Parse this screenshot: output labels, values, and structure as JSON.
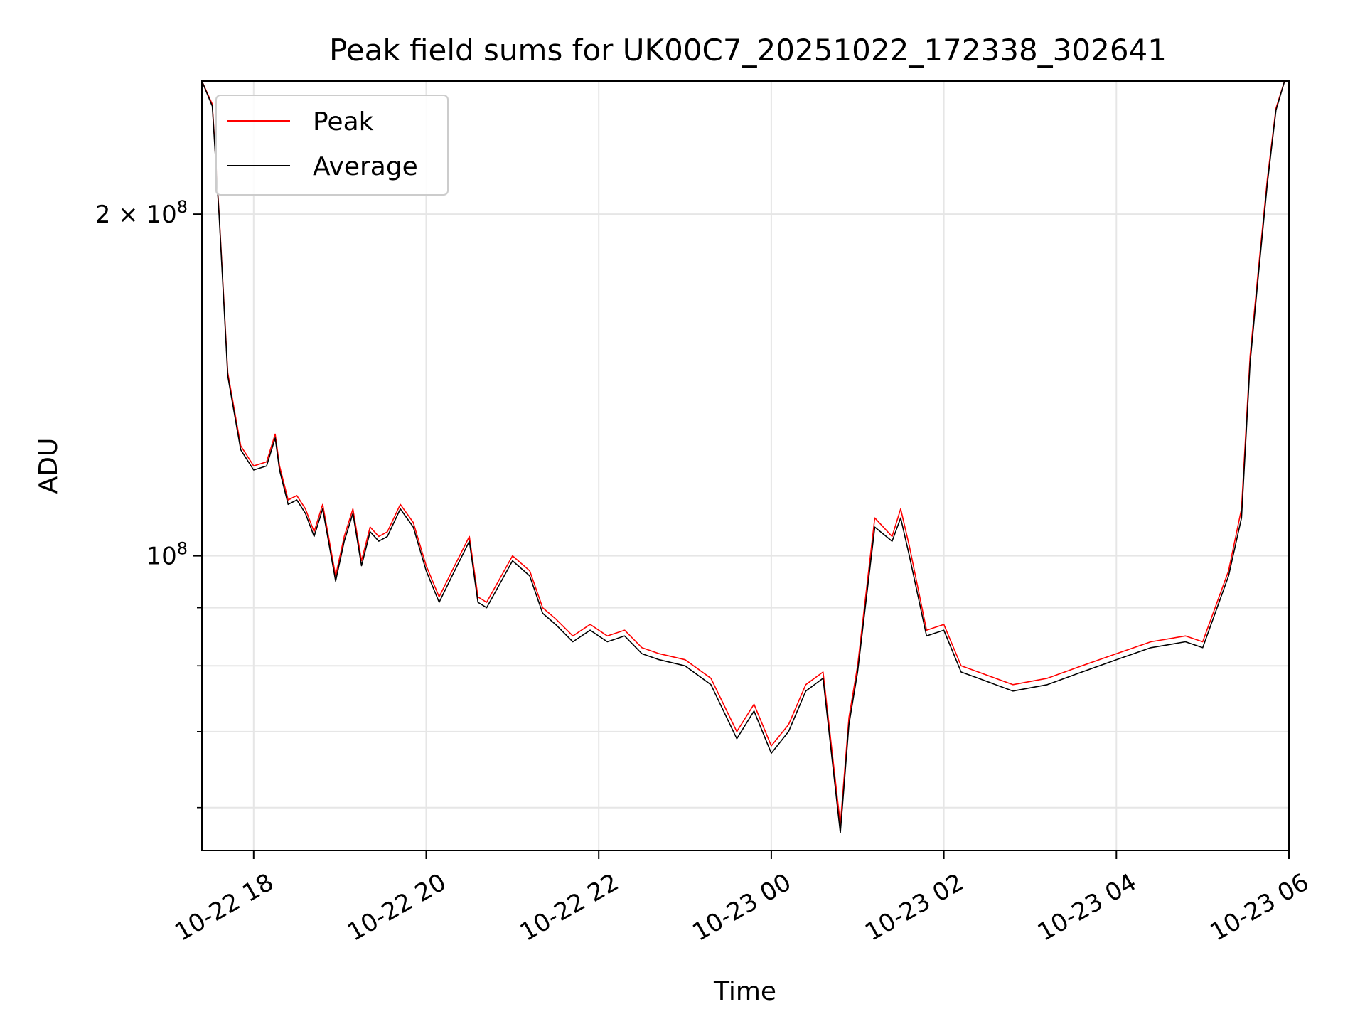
{
  "chart_data": {
    "type": "line",
    "title": "Peak field sums for UK00C7_20251022_172338_302641",
    "xlabel": "Time",
    "ylabel": "ADU",
    "yscale": "log",
    "ylim": [
      55000000,
      262000000
    ],
    "xlim_hours": [
      17.4,
      30.0
    ],
    "x_unit": "hours since 2025-10-22 00:00",
    "x_ticks": [
      {
        "value": 18,
        "label": "10-22 18"
      },
      {
        "value": 20,
        "label": "10-22 20"
      },
      {
        "value": 22,
        "label": "10-22 22"
      },
      {
        "value": 24,
        "label": "10-23 00"
      },
      {
        "value": 26,
        "label": "10-23 02"
      },
      {
        "value": 28,
        "label": "10-23 04"
      },
      {
        "value": 30,
        "label": "10-23 06"
      }
    ],
    "y_major_ticks": [
      {
        "value": 100000000,
        "base": "10",
        "exp": "8",
        "coef": ""
      },
      {
        "value": 200000000,
        "base": "10",
        "exp": "8",
        "coef": "2 × "
      }
    ],
    "y_minor_ticks": [
      60000000,
      70000000,
      80000000,
      90000000
    ],
    "grid": true,
    "legend": {
      "location": "upper-left"
    },
    "series": [
      {
        "name": "Peak",
        "color": "#ff0000",
        "x": [
          17.4,
          17.52,
          17.6,
          17.7,
          17.85,
          18.0,
          18.15,
          18.25,
          18.3,
          18.4,
          18.5,
          18.6,
          18.7,
          18.8,
          18.95,
          19.05,
          19.15,
          19.25,
          19.35,
          19.45,
          19.55,
          19.7,
          19.85,
          20.0,
          20.15,
          20.3,
          20.5,
          20.6,
          20.7,
          21.0,
          21.2,
          21.35,
          21.5,
          21.7,
          21.9,
          22.1,
          22.3,
          22.5,
          22.7,
          23.0,
          23.3,
          23.6,
          23.8,
          24.0,
          24.2,
          24.4,
          24.6,
          24.8,
          24.9,
          25.0,
          25.2,
          25.4,
          25.5,
          25.6,
          25.8,
          26.0,
          26.2,
          26.4,
          26.8,
          27.2,
          27.6,
          28.0,
          28.4,
          28.8,
          29.0,
          29.3,
          29.45,
          29.55,
          29.65,
          29.75,
          29.85,
          29.95
        ],
        "y": [
          262000000,
          250000000,
          200000000,
          145000000,
          125000000,
          120000000,
          121000000,
          128000000,
          120000000,
          112000000,
          113000000,
          110000000,
          105000000,
          111000000,
          96000000,
          104000000,
          110000000,
          99000000,
          106000000,
          104000000,
          105000000,
          111000000,
          107000000,
          98000000,
          92000000,
          97000000,
          104000000,
          92000000,
          91000000,
          100000000,
          97000000,
          90000000,
          88000000,
          85000000,
          87000000,
          85000000,
          86000000,
          83000000,
          82000000,
          81000000,
          78000000,
          70000000,
          74000000,
          68000000,
          71000000,
          77000000,
          79000000,
          58000000,
          72000000,
          80000000,
          108000000,
          104000000,
          110000000,
          102000000,
          86000000,
          87000000,
          80000000,
          79000000,
          77000000,
          78000000,
          80000000,
          82000000,
          84000000,
          85000000,
          84000000,
          97000000,
          110000000,
          150000000,
          180000000,
          215000000,
          248000000,
          262000000
        ]
      },
      {
        "name": "Average",
        "color": "#000000",
        "x": [
          17.4,
          17.52,
          17.6,
          17.7,
          17.85,
          18.0,
          18.15,
          18.25,
          18.3,
          18.4,
          18.5,
          18.6,
          18.7,
          18.8,
          18.95,
          19.05,
          19.15,
          19.25,
          19.35,
          19.45,
          19.55,
          19.7,
          19.85,
          20.0,
          20.15,
          20.3,
          20.5,
          20.6,
          20.7,
          21.0,
          21.2,
          21.35,
          21.5,
          21.7,
          21.9,
          22.1,
          22.3,
          22.5,
          22.7,
          23.0,
          23.3,
          23.6,
          23.8,
          24.0,
          24.2,
          24.4,
          24.6,
          24.8,
          24.9,
          25.0,
          25.2,
          25.4,
          25.5,
          25.6,
          25.8,
          26.0,
          26.2,
          26.4,
          26.8,
          27.2,
          27.6,
          28.0,
          28.4,
          28.8,
          29.0,
          29.3,
          29.45,
          29.55,
          29.65,
          29.75,
          29.85,
          29.95
        ],
        "y": [
          262000000,
          249000000,
          199000000,
          144000000,
          124000000,
          119000000,
          120000000,
          127000000,
          119000000,
          111000000,
          112000000,
          109000000,
          104000000,
          110000000,
          95000000,
          103000000,
          109000000,
          98000000,
          105000000,
          103000000,
          104000000,
          110000000,
          106000000,
          97000000,
          91000000,
          96000000,
          103000000,
          91000000,
          90000000,
          99000000,
          96000000,
          89000000,
          87000000,
          84000000,
          86000000,
          84000000,
          85000000,
          82000000,
          81000000,
          80000000,
          77000000,
          69000000,
          73000000,
          67000000,
          70000000,
          76000000,
          78000000,
          57000000,
          71000000,
          79000000,
          106000000,
          103000000,
          108000000,
          100000000,
          85000000,
          86000000,
          79000000,
          78000000,
          76000000,
          77000000,
          79000000,
          81000000,
          83000000,
          84000000,
          83000000,
          96000000,
          108000000,
          148000000,
          178000000,
          213000000,
          247000000,
          262000000
        ]
      }
    ]
  }
}
